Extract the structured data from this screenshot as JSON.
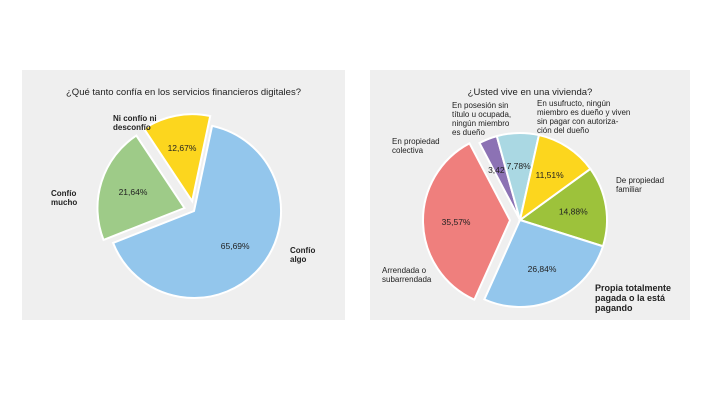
{
  "chart_data": [
    {
      "type": "pie",
      "title": "¿Qué tanto confía en los servicios financieros digitales?",
      "slices": [
        {
          "label": "Confío\nalgo",
          "value": 65.69,
          "value_label": "65,69%",
          "color": "#93c6ec"
        },
        {
          "label": "Confío\nmucho",
          "value": 21.64,
          "value_label": "21,64%",
          "color": "#9ecb88"
        },
        {
          "label": "Ni confío ni\ndesconfío",
          "value": 12.67,
          "value_label": "12,67%",
          "color": "#fcd61e"
        }
      ]
    },
    {
      "type": "pie",
      "title": "¿Usted vive en una vivienda?",
      "slices": [
        {
          "label": "De propiedad\nfamiliar",
          "value": 14.88,
          "value_label": "14,88%",
          "color": "#9dc23b"
        },
        {
          "label": "Propia totalmente\npagada o la está\npagando",
          "value": 26.84,
          "value_label": "26,84%",
          "color": "#93c6ec"
        },
        {
          "label": "Arrendada o\nsubarrendada",
          "value": 35.57,
          "value_label": "35,57%",
          "color": "#ef7f7d"
        },
        {
          "label": "En propiedad\ncolectiva",
          "value": 3.42,
          "value_label": "3,42%",
          "color": "#8c72b4"
        },
        {
          "label": "En posesión sin\ntítulo u ocupada,\nningún miembro\nes dueño",
          "value": 7.78,
          "value_label": "7,78%",
          "color": "#aad8e3"
        },
        {
          "label": "En usufructo, ningún\nmiembro es dueño y viven\nsin pagar con autoriza-\nción del dueño",
          "value": 11.51,
          "value_label": "11,51%",
          "color": "#fcd61e"
        }
      ]
    }
  ]
}
